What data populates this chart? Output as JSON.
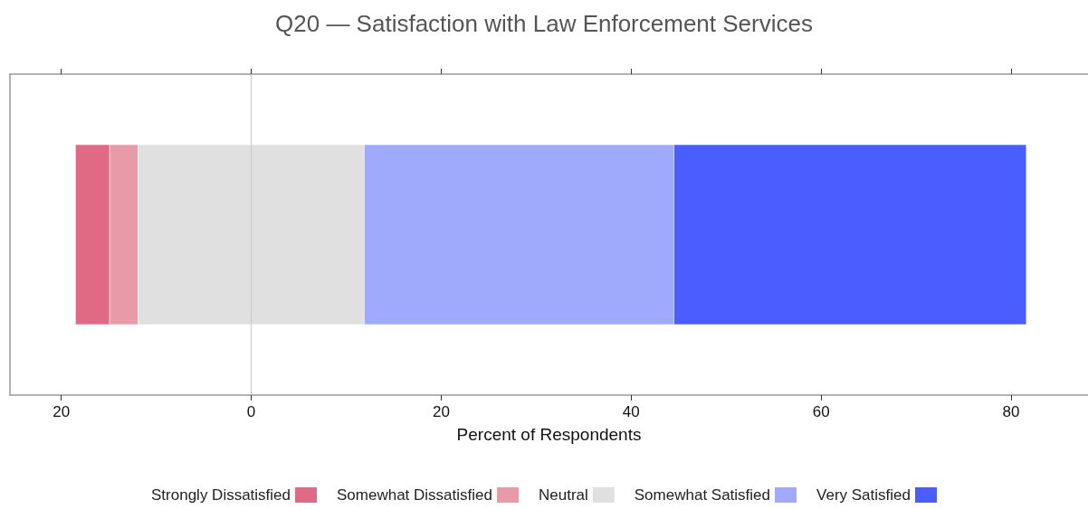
{
  "chart_data": {
    "type": "bar",
    "title": "Q20 — Satisfaction with Law Enforcement Services",
    "xlabel": "Percent of Respondents",
    "orientation": "horizontal",
    "categories": [
      null
    ],
    "series": [
      {
        "name": "Strongly Dissatisfied",
        "color": "#e06a85",
        "base": [
          -18.5
        ],
        "values": [
          3.6
        ]
      },
      {
        "name": "Somewhat Dissatisfied",
        "color": "#e89aa9",
        "base": [
          -14.9
        ],
        "values": [
          3.0
        ]
      },
      {
        "name": "Neutral",
        "color": "#e0e0e0",
        "base": [
          -11.9
        ],
        "values": [
          23.8
        ]
      },
      {
        "name": "Somewhat Satisfied",
        "color": "#a0aafc",
        "base": [
          11.9
        ],
        "values": [
          32.6
        ]
      },
      {
        "name": "Very Satisfied",
        "color": "#4a5eff",
        "base": [
          44.5
        ],
        "values": [
          37.1
        ]
      }
    ],
    "xlim": [
      -25.4,
      88.1
    ],
    "xticks": [
      {
        "value": -20,
        "label": "20"
      },
      0,
      20,
      40,
      60,
      80
    ],
    "ref_lines": [
      {
        "axis": "x",
        "value": 0,
        "color": "#cccccc"
      }
    ],
    "grid": false,
    "legend": "bottom"
  }
}
